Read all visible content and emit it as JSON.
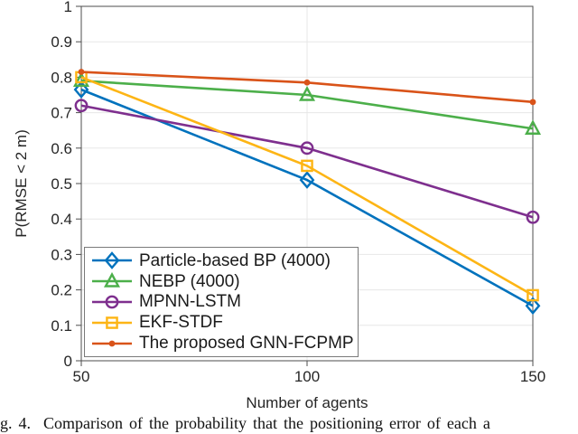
{
  "figure": {
    "caption": "g. 4.  Comparison of the probability that the positioning error of each a"
  },
  "chart_data": {
    "type": "line",
    "title": "",
    "xlabel": "Number of agents",
    "ylabel": "P(RMSE < 2 m)",
    "x": [
      50,
      100,
      150
    ],
    "xlim": [
      50,
      150
    ],
    "ylim": [
      0,
      1
    ],
    "x_ticks": [
      50,
      100,
      150
    ],
    "y_ticks": [
      0,
      0.1,
      0.2,
      0.3,
      0.4,
      0.5,
      0.6,
      0.7,
      0.8,
      0.9,
      1
    ],
    "grid": true,
    "legend_position": "lower-left",
    "series": [
      {
        "name": "Particle-based BP (4000)",
        "color": "#0072BD",
        "marker": "diamond",
        "values": [
          0.765,
          0.51,
          0.155
        ]
      },
      {
        "name": "NEBP (4000)",
        "color": "#4CAF4A",
        "marker": "triangle",
        "values": [
          0.79,
          0.75,
          0.655
        ]
      },
      {
        "name": "MPNN-LSTM",
        "color": "#7E2F8E",
        "marker": "circle",
        "values": [
          0.72,
          0.6,
          0.405
        ]
      },
      {
        "name": "EKF-STDF",
        "color": "#FDB515",
        "marker": "square",
        "values": [
          0.8,
          0.55,
          0.185
        ]
      },
      {
        "name": "The proposed GNN-FCPMP",
        "color": "#D95319",
        "marker": "dot",
        "values": [
          0.815,
          0.785,
          0.73
        ]
      }
    ],
    "colors": {
      "grid": "#E7E7E7",
      "axis": "#4D4D4D",
      "text": "#262626"
    }
  }
}
